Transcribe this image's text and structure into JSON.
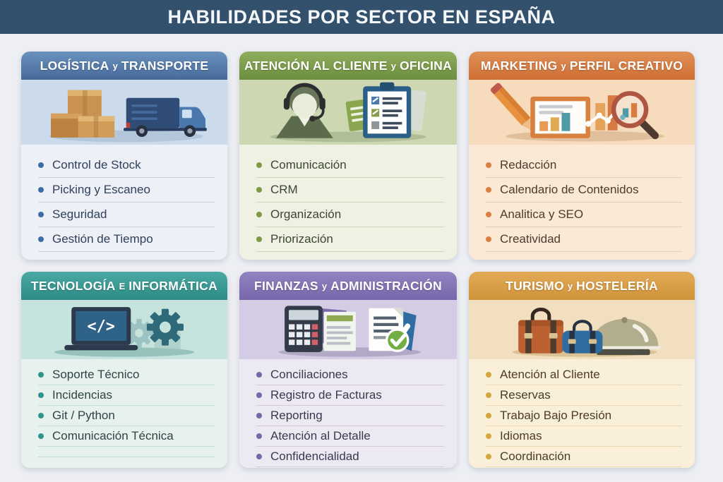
{
  "page": {
    "title": "HABILIDADES POR SECTOR EN ESPAÑA",
    "banner_bg": "#33506d",
    "background": "#edeff4"
  },
  "cards": [
    {
      "id": "logistica-transporte",
      "title": {
        "part1": "LOGÍSTICA",
        "conjunction": "y",
        "part2": "TRANSPORTE"
      },
      "illustration": "boxes-truck-illustration",
      "items": [
        "Control de Stock",
        "Picking y Escaneo",
        "Seguridad",
        "Gestión de Tiempo"
      ],
      "colors": {
        "header_top": "#6a92be",
        "header_bottom": "#47699a",
        "illustration_bg": "#ccdbeb",
        "body_bg": "#edf1f7",
        "bullet": "#3c6ea6",
        "divider": "#c4d2e2",
        "text": "#30405a"
      }
    },
    {
      "id": "atencion-cliente-oficina",
      "title": {
        "part1": "ATENCIÓN AL CLIENTE",
        "conjunction": "y",
        "part2": "OFICINA"
      },
      "illustration": "support-agent-clipboard-illustration",
      "items": [
        "Comunicación",
        "CRM",
        "Organización",
        "Priorización"
      ],
      "colors": {
        "header_top": "#8fae5d",
        "header_bottom": "#6d8e3f",
        "illustration_bg": "#cdd8b3",
        "body_bg": "#eff2e2",
        "bullet": "#7d9a45",
        "divider": "#d0d9ba",
        "text": "#3c4532"
      }
    },
    {
      "id": "marketing-perfil-creativo",
      "title": {
        "part1": "MARKETING",
        "conjunction": "y",
        "part2": "PERFIL CREATIVO"
      },
      "illustration": "pencil-chart-magnifier-illustration",
      "items": [
        "Redacción",
        "Calendario de Contenidos",
        "Analitica y SEO",
        "Creatividad"
      ],
      "colors": {
        "header_top": "#e09055",
        "header_bottom": "#cf6e35",
        "illustration_bg": "#f6dbbc",
        "body_bg": "#fbe9d6",
        "bullet": "#d97f43",
        "divider": "#e6cdb4",
        "text": "#4b3c2e"
      }
    },
    {
      "id": "tecnologia-informatica",
      "title": {
        "part1": "TECNOLOGÍA",
        "conjunction": "E",
        "part2": "INFORMÁTICA"
      },
      "illustration": "laptop-gears-illustration",
      "items": [
        "Soporte Técnico",
        "Incidencias",
        "Git / Python",
        "Comunicación Técnica"
      ],
      "trailing_blank_row": true,
      "colors": {
        "header_top": "#4aa9a3",
        "header_bottom": "#2e8b86",
        "illustration_bg": "#c6e3dd",
        "body_bg": "#e7f2ee",
        "bullet": "#2f938e",
        "divider": "#c3ded8",
        "text": "#2e4444"
      }
    },
    {
      "id": "finanzas-administracion",
      "title": {
        "part1": "FINANZAS",
        "conjunction": "y",
        "part2": "ADMINISTRACIÓN"
      },
      "illustration": "calculator-documents-illustration",
      "items": [
        "Conciliaciones",
        "Registro de Facturas",
        "Reporting",
        "Atención al Detalle",
        "Confidencialidad"
      ],
      "colors": {
        "header_top": "#9184c0",
        "header_bottom": "#7866ab",
        "illustration_bg": "#d3cce4",
        "body_bg": "#ece9f2",
        "bullet": "#7568a8",
        "divider": "#d3cce0",
        "text": "#3b3850"
      }
    },
    {
      "id": "turismo-hosteleria",
      "title": {
        "part1": "TURISMO",
        "conjunction": "y",
        "part2": "HOSTELERÍA"
      },
      "illustration": "luggage-cloche-illustration",
      "items": [
        "Atención al Cliente",
        "Reservas",
        "Trabajo Bajo Presión",
        "Idiomas",
        "Coordinación"
      ],
      "colors": {
        "header_top": "#e3aa56",
        "header_bottom": "#d0943a",
        "illustration_bg": "#f2dfbf",
        "body_bg": "#faf0da",
        "bullet": "#d4a83f",
        "divider": "#e9d9b6",
        "text": "#4a3c26"
      }
    }
  ]
}
